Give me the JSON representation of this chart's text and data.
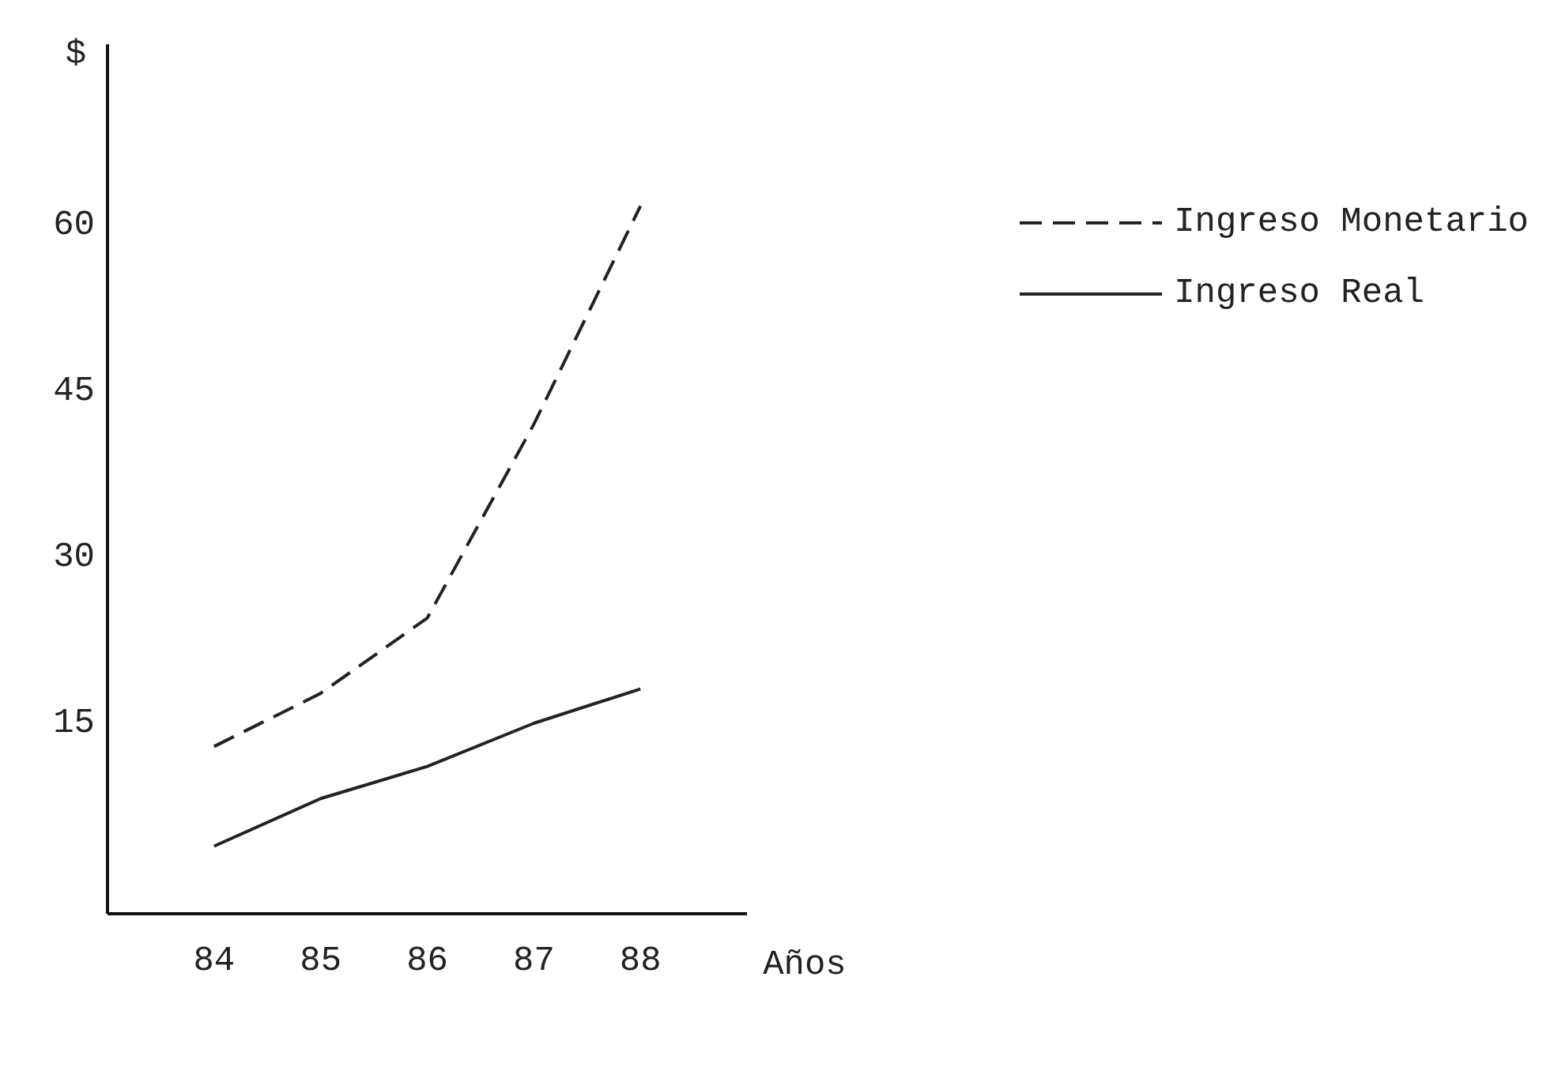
{
  "chart_data": {
    "type": "line",
    "xlabel": "Años",
    "ylabel": "$",
    "x": [
      84,
      85,
      86,
      87,
      88
    ],
    "xlim": [
      83,
      89
    ],
    "xticks": [
      84,
      85,
      86,
      87,
      88
    ],
    "ylim": [
      -2.5,
      76
    ],
    "yticks": [
      15,
      30,
      45,
      60
    ],
    "grid": false,
    "legend": "top right",
    "marker": "none",
    "series": [
      {
        "name": "Ingreso Monetario",
        "color": "#222222",
        "line_style": "dashed",
        "values": [
          12.6,
          17.4,
          24.2,
          41.7,
          61.4
        ]
      },
      {
        "name": "Ingreso Real",
        "color": "#222222",
        "line_style": "solid",
        "values": [
          3.6,
          7.9,
          10.8,
          14.7,
          17.8
        ]
      }
    ]
  }
}
